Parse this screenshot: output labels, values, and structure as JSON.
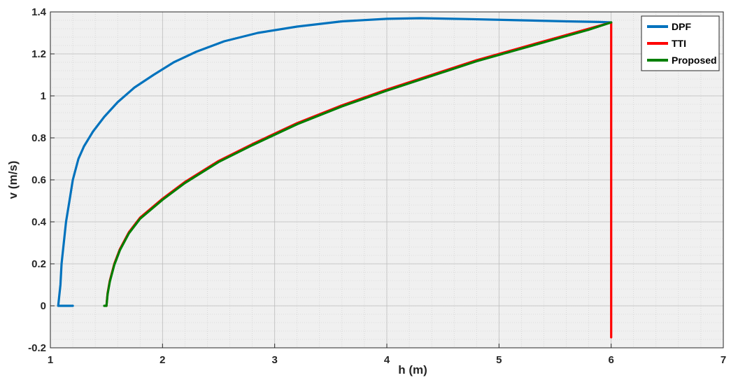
{
  "chart_data": {
    "type": "line",
    "title": "",
    "xlabel": "h (m)",
    "ylabel": "v (m/s)",
    "xlim": [
      1,
      7
    ],
    "ylim": [
      -0.2,
      1.4
    ],
    "xticks": [
      "1",
      "2",
      "3",
      "4",
      "5",
      "6",
      "7"
    ],
    "yticks": [
      "-0.2",
      "0",
      "0.2",
      "0.4",
      "0.6",
      "0.8",
      "1",
      "1.2",
      "1.4"
    ],
    "grid": true,
    "minor_grid": true,
    "legend_position": "top-right",
    "background_color": "#f0f0f0",
    "series": [
      {
        "name": "DPF",
        "color": "#0072bd",
        "x": [
          1.2,
          1.08,
          1.07,
          1.09,
          1.1,
          1.12,
          1.14,
          1.17,
          1.2,
          1.25,
          1.3,
          1.38,
          1.48,
          1.6,
          1.75,
          1.92,
          2.1,
          2.3,
          2.55,
          2.85,
          3.2,
          3.6,
          4.0,
          4.3,
          4.7,
          5.2,
          5.6,
          5.9,
          6.0
        ],
        "y": [
          0.0,
          0.0,
          0.0,
          0.1,
          0.2,
          0.3,
          0.4,
          0.5,
          0.6,
          0.7,
          0.76,
          0.83,
          0.9,
          0.97,
          1.04,
          1.1,
          1.16,
          1.21,
          1.26,
          1.3,
          1.33,
          1.355,
          1.367,
          1.37,
          1.366,
          1.36,
          1.355,
          1.352,
          1.35
        ]
      },
      {
        "name": "TTI",
        "color": "#ff0000",
        "x": [
          6.0,
          6.0,
          5.8,
          5.5,
          5.2,
          4.8,
          4.4,
          4.0,
          3.6,
          3.2,
          2.8,
          2.5,
          2.2,
          2.0,
          1.8,
          1.7,
          1.62,
          1.57,
          1.53,
          1.51,
          1.5
        ],
        "y": [
          -0.15,
          1.35,
          1.32,
          1.275,
          1.23,
          1.17,
          1.1,
          1.03,
          0.955,
          0.87,
          0.77,
          0.69,
          0.59,
          0.51,
          0.42,
          0.35,
          0.27,
          0.2,
          0.12,
          0.06,
          0.0
        ]
      },
      {
        "name": "Proposed",
        "color": "#007f00",
        "x": [
          6.0,
          5.8,
          5.5,
          5.2,
          4.8,
          4.4,
          4.0,
          3.6,
          3.2,
          2.8,
          2.5,
          2.2,
          2.0,
          1.8,
          1.7,
          1.62,
          1.57,
          1.53,
          1.51,
          1.5,
          1.48
        ],
        "y": [
          1.35,
          1.315,
          1.27,
          1.225,
          1.165,
          1.095,
          1.025,
          0.95,
          0.865,
          0.765,
          0.685,
          0.585,
          0.505,
          0.415,
          0.345,
          0.265,
          0.195,
          0.115,
          0.055,
          0.0,
          0.0
        ]
      }
    ]
  }
}
